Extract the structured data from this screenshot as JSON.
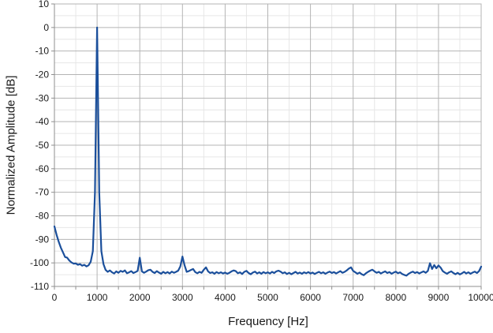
{
  "chart_data": {
    "type": "line",
    "title": "",
    "xlabel": "Frequency [Hz]",
    "ylabel": "Normalized Amplitude [dB]",
    "xlim": [
      0,
      10000
    ],
    "ylim": [
      -110,
      10
    ],
    "x_ticks": [
      0,
      1000,
      2000,
      3000,
      4000,
      5000,
      6000,
      7000,
      8000,
      9000,
      10000
    ],
    "y_ticks": [
      10,
      0,
      -10,
      -20,
      -30,
      -40,
      -50,
      -60,
      -70,
      -80,
      -90,
      -100,
      -110
    ],
    "x_minor_step": 500,
    "y_minor_step": 5,
    "grid": true,
    "legend": "none",
    "colors": {
      "line": "#1b4f9b",
      "grid_major": "#b4b4b4",
      "grid_minor": "#e6e6e6",
      "axis": "#8f8f8f",
      "text": "#1a1a1a",
      "background": "#ffffff"
    },
    "series": [
      {
        "name": "spectrum",
        "x_start": 0,
        "x_step": 50,
        "values": [
          -84.5,
          -88.0,
          -91.0,
          -93.5,
          -95.5,
          -97.5,
          -97.8,
          -99.0,
          -99.8,
          -100.3,
          -100.2,
          -100.8,
          -100.5,
          -101.2,
          -100.8,
          -101.5,
          -101.0,
          -99.5,
          -95.0,
          -70.0,
          0.0,
          -70.0,
          -95.0,
          -100.5,
          -103.0,
          -103.8,
          -103.2,
          -104.0,
          -104.5,
          -103.6,
          -104.2,
          -103.4,
          -103.8,
          -103.2,
          -104.4,
          -104.0,
          -103.5,
          -104.3,
          -103.9,
          -103.4,
          -97.8,
          -103.6,
          -104.2,
          -103.7,
          -103.1,
          -102.9,
          -103.8,
          -104.3,
          -103.5,
          -104.1,
          -104.6,
          -103.8,
          -104.4,
          -103.9,
          -104.5,
          -103.7,
          -104.2,
          -103.8,
          -103.3,
          -101.5,
          -97.3,
          -101.0,
          -103.8,
          -103.5,
          -103.0,
          -102.6,
          -103.9,
          -104.4,
          -103.8,
          -104.2,
          -102.9,
          -101.9,
          -103.6,
          -104.3,
          -104.0,
          -104.6,
          -103.9,
          -104.4,
          -104.0,
          -104.5,
          -104.1,
          -104.6,
          -104.2,
          -103.6,
          -103.2,
          -103.5,
          -104.4,
          -104.0,
          -104.7,
          -103.8,
          -103.4,
          -104.3,
          -104.8,
          -104.1,
          -103.7,
          -104.5,
          -104.0,
          -104.6,
          -103.9,
          -104.4,
          -104.0,
          -104.5,
          -103.8,
          -104.3,
          -103.6,
          -103.3,
          -103.7,
          -104.4,
          -104.0,
          -104.7,
          -104.2,
          -104.8,
          -104.3,
          -103.8,
          -104.5,
          -104.1,
          -104.6,
          -104.0,
          -104.4,
          -103.9,
          -104.5,
          -104.1,
          -104.7,
          -104.2,
          -103.8,
          -104.4,
          -104.0,
          -104.6,
          -104.1,
          -103.7,
          -104.3,
          -103.9,
          -104.5,
          -104.0,
          -103.5,
          -104.2,
          -103.8,
          -103.2,
          -102.4,
          -101.9,
          -103.4,
          -104.0,
          -104.6,
          -104.1,
          -104.8,
          -105.2,
          -104.4,
          -103.8,
          -103.3,
          -102.9,
          -103.6,
          -104.2,
          -103.8,
          -104.5,
          -104.0,
          -103.6,
          -104.3,
          -103.9,
          -104.6,
          -104.1,
          -103.7,
          -104.4,
          -104.0,
          -104.7,
          -105.1,
          -105.4,
          -104.6,
          -104.1,
          -103.7,
          -104.3,
          -103.9,
          -104.5,
          -104.0,
          -103.6,
          -104.2,
          -103.4,
          -100.1,
          -102.6,
          -100.9,
          -102.3,
          -101.1,
          -102.0,
          -103.5,
          -104.1,
          -104.6,
          -104.0,
          -103.6,
          -104.3,
          -104.8,
          -104.2,
          -104.9,
          -104.4,
          -103.8,
          -104.5,
          -104.0,
          -104.6,
          -104.1,
          -103.7,
          -104.3,
          -103.5,
          -101.6
        ]
      }
    ]
  }
}
